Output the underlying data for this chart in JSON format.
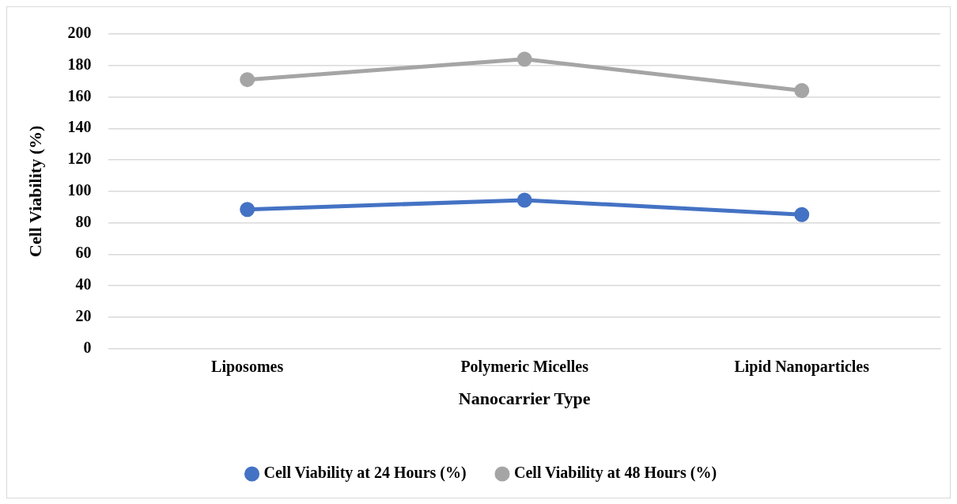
{
  "chart_data": {
    "type": "line",
    "xlabel": "Nanocarrier Type",
    "ylabel": "Cell Viability (%)",
    "categories": [
      "Liposomes",
      "Polymeric Micelles",
      "Lipid Nanoparticles"
    ],
    "series": [
      {
        "name": "Cell Viability at 24 Hours (%)",
        "color": "#4472c4",
        "values": [
          88.5,
          94.4,
          85.2
        ]
      },
      {
        "name": "Cell Viability at 48 Hours (%)",
        "color": "#a5a5a5",
        "values": [
          171,
          184,
          164
        ]
      }
    ],
    "ylim": [
      0,
      200
    ],
    "yticks": [
      0,
      20,
      40,
      60,
      80,
      100,
      120,
      140,
      160,
      180,
      200
    ],
    "grid": "y",
    "legend": "bottom",
    "marker": "circle",
    "line_style": "solid"
  }
}
